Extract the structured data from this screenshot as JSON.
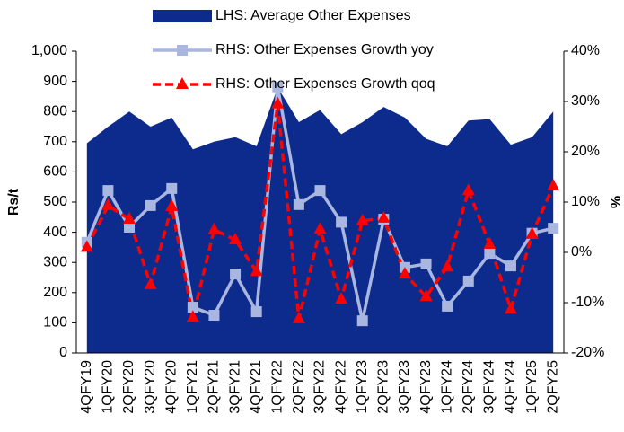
{
  "chart_data": {
    "type": "combo",
    "y_label": "Rs/t",
    "y2_label": "%",
    "categories": [
      "4QFY19",
      "1QFY20",
      "2QFY20",
      "3QFY20",
      "4QFY20",
      "1QFY21",
      "2QFY21",
      "3QFY21",
      "4QFY21",
      "1QFY22",
      "2QFY22",
      "3QFY22",
      "4QFY22",
      "1QFY23",
      "2QFY23",
      "3QFY23",
      "4QFY23",
      "1QFY24",
      "2QFY24",
      "3QFY24",
      "4QFY24",
      "1QFY25",
      "2QFY25"
    ],
    "series": [
      {
        "name": "LHS: Average Other Expenses",
        "type": "area",
        "color": "#0d2b8c",
        "axis": "y",
        "values": [
          695,
          750,
          800,
          750,
          780,
          675,
          700,
          715,
          685,
          880,
          765,
          805,
          725,
          765,
          815,
          780,
          710,
          685,
          770,
          775,
          690,
          715,
          800
        ]
      },
      {
        "name": "RHS: Other Expenses Growth yoy",
        "type": "line",
        "color": "#a9b6e0",
        "axis": "y2",
        "marker": "square",
        "dashed": false,
        "values": [
          2,
          12.3,
          5,
          9.3,
          12.7,
          -10.9,
          -12.5,
          -4.3,
          -11.8,
          32.9,
          9.5,
          12.3,
          6,
          -13.6,
          6.6,
          -3,
          -2.3,
          -10.7,
          -5.7,
          -0.2,
          -2.7,
          3.8,
          4.8
        ]
      },
      {
        "name": "RHS: Other Expenses Growth qoq",
        "type": "line",
        "color": "#ff0000",
        "axis": "y2",
        "marker": "triangle",
        "dashed": true,
        "values": [
          1,
          9.3,
          6.6,
          -6.4,
          9.1,
          -12.9,
          4.5,
          2.5,
          -3.8,
          29.5,
          -13.2,
          4.6,
          -9.3,
          6.3,
          6.8,
          -4.3,
          -8.8,
          -2.9,
          12.3,
          1.6,
          -11.3,
          3.6,
          13.2
        ]
      }
    ],
    "ylim": [
      0,
      1000
    ],
    "yticks": [
      0,
      100,
      200,
      300,
      400,
      500,
      600,
      700,
      800,
      900,
      {
        "value": 1000,
        "label": "1,000"
      }
    ],
    "y2lim": [
      -20,
      40
    ],
    "y2ticks": [
      {
        "value": -20,
        "label": "-20%"
      },
      {
        "value": -10,
        "label": "-10%"
      },
      {
        "value": 0,
        "label": "0%"
      },
      {
        "value": 10,
        "label": "10%"
      },
      {
        "value": 20,
        "label": "20%"
      },
      {
        "value": 30,
        "label": "30%"
      },
      {
        "value": 40,
        "label": "40%"
      }
    ],
    "grid": false
  }
}
